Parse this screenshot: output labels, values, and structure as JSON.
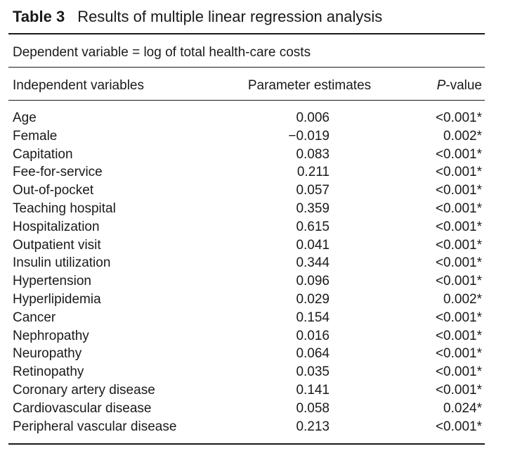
{
  "table": {
    "label": "Table 3",
    "title": "Results of multiple linear regression analysis",
    "dependent_variable": "Dependent variable = log of total health-care costs",
    "headers": {
      "variable": "Independent variables",
      "estimate": "Parameter estimates",
      "p_italic": "P",
      "p_rest": "-value"
    },
    "rows": [
      {
        "variable": "Age",
        "estimate": "0.006",
        "p": "<0.001*"
      },
      {
        "variable": "Female",
        "estimate": "−0.019",
        "p": "0.002*"
      },
      {
        "variable": "Capitation",
        "estimate": "0.083",
        "p": "<0.001*"
      },
      {
        "variable": "Fee-for-service",
        "estimate": "0.211",
        "p": "<0.001*"
      },
      {
        "variable": "Out-of-pocket",
        "estimate": "0.057",
        "p": "<0.001*"
      },
      {
        "variable": "Teaching hospital",
        "estimate": "0.359",
        "p": "<0.001*"
      },
      {
        "variable": "Hospitalization",
        "estimate": "0.615",
        "p": "<0.001*"
      },
      {
        "variable": "Outpatient visit",
        "estimate": "0.041",
        "p": "<0.001*"
      },
      {
        "variable": "Insulin utilization",
        "estimate": "0.344",
        "p": "<0.001*"
      },
      {
        "variable": "Hypertension",
        "estimate": "0.096",
        "p": "<0.001*"
      },
      {
        "variable": "Hyperlipidemia",
        "estimate": "0.029",
        "p": "0.002*"
      },
      {
        "variable": "Cancer",
        "estimate": "0.154",
        "p": "<0.001*"
      },
      {
        "variable": "Nephropathy",
        "estimate": "0.016",
        "p": "<0.001*"
      },
      {
        "variable": "Neuropathy",
        "estimate": "0.064",
        "p": "<0.001*"
      },
      {
        "variable": "Retinopathy",
        "estimate": "0.035",
        "p": "<0.001*"
      },
      {
        "variable": "Coronary artery disease",
        "estimate": "0.141",
        "p": "<0.001*"
      },
      {
        "variable": "Cardiovascular disease",
        "estimate": "0.058",
        "p": "0.024*"
      },
      {
        "variable": "Peripheral vascular disease",
        "estimate": "0.213",
        "p": "<0.001*"
      }
    ]
  }
}
